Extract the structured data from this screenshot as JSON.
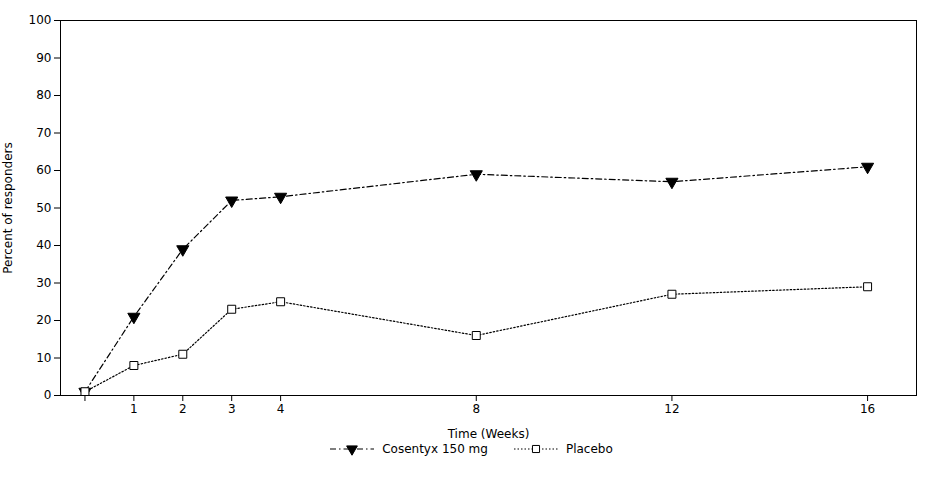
{
  "chart_data": {
    "type": "line",
    "x_label": "Time (Weeks)",
    "y_label": "Percent of responders",
    "x": [
      0,
      1,
      2,
      3,
      4,
      8,
      12,
      16
    ],
    "series": [
      {
        "name": "Cosentyx 150 mg",
        "color": "#000000",
        "marker": "triangle-down",
        "line_style": "dashdot",
        "values": [
          1,
          21,
          39,
          52,
          53,
          59,
          57,
          61
        ]
      },
      {
        "name": "Placebo",
        "color": "#000000",
        "marker": "square-open",
        "line_style": "dotted",
        "values": [
          1,
          8,
          11,
          23,
          25,
          16,
          27,
          29
        ]
      }
    ],
    "xlim": [
      -0.5,
      17
    ],
    "xticks": [
      {
        "value": 0,
        "label": null
      },
      1,
      2,
      3,
      4,
      8,
      12,
      16
    ],
    "ylim": [
      0,
      100
    ],
    "yticks": [
      0,
      10,
      20,
      30,
      40,
      50,
      60,
      70,
      80,
      90,
      100
    ],
    "grid": false,
    "legend": "bottom"
  }
}
